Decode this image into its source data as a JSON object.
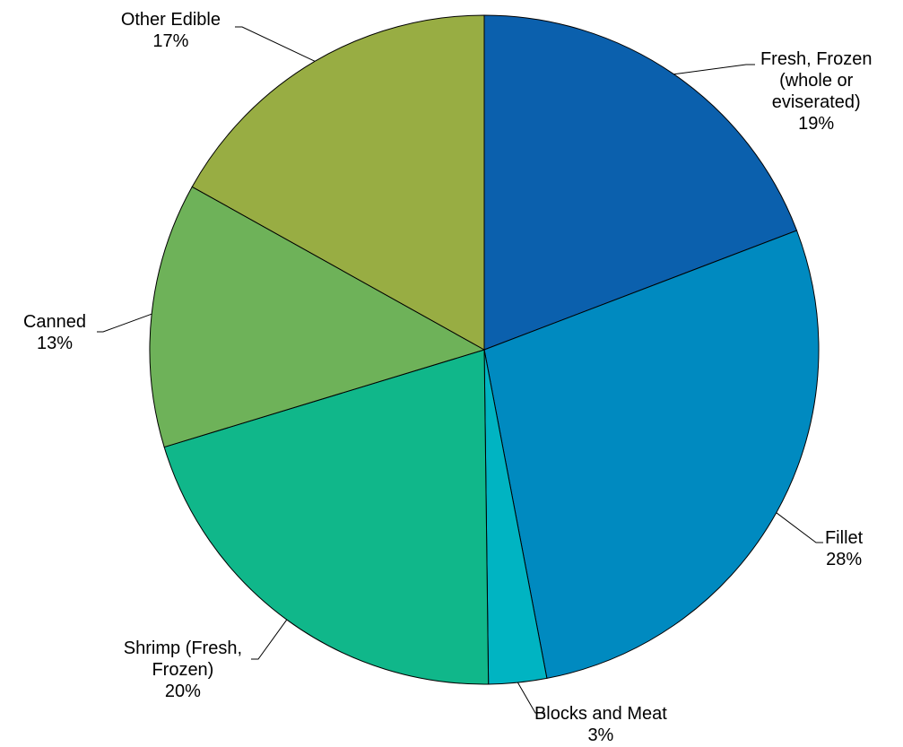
{
  "chart_data": {
    "type": "pie",
    "title": "",
    "start_angle_deg": 0,
    "direction": "clockwise",
    "slices": [
      {
        "label_lines": [
          "Fresh, Frozen",
          "(whole or",
          "eviserated)"
        ],
        "pct_label": "19%",
        "value": 19.2,
        "color": "#0b60ad"
      },
      {
        "label_lines": [
          "Fillet"
        ],
        "pct_label": "28%",
        "value": 27.8,
        "color": "#008ac0"
      },
      {
        "label_lines": [
          "Blocks and Meat"
        ],
        "pct_label": "3%",
        "value": 2.8,
        "color": "#00b4c2"
      },
      {
        "label_lines": [
          "Shrimp (Fresh,",
          "Frozen)"
        ],
        "pct_label": "20%",
        "value": 20.5,
        "color": "#10b78a"
      },
      {
        "label_lines": [
          "Canned"
        ],
        "pct_label": "13%",
        "value": 12.8,
        "color": "#6eb259"
      },
      {
        "label_lines": [
          "Other Edible"
        ],
        "pct_label": "17%",
        "value": 16.9,
        "color": "#98ad43"
      }
    ],
    "legend": "none",
    "labels": "outside-with-leader-lines"
  }
}
